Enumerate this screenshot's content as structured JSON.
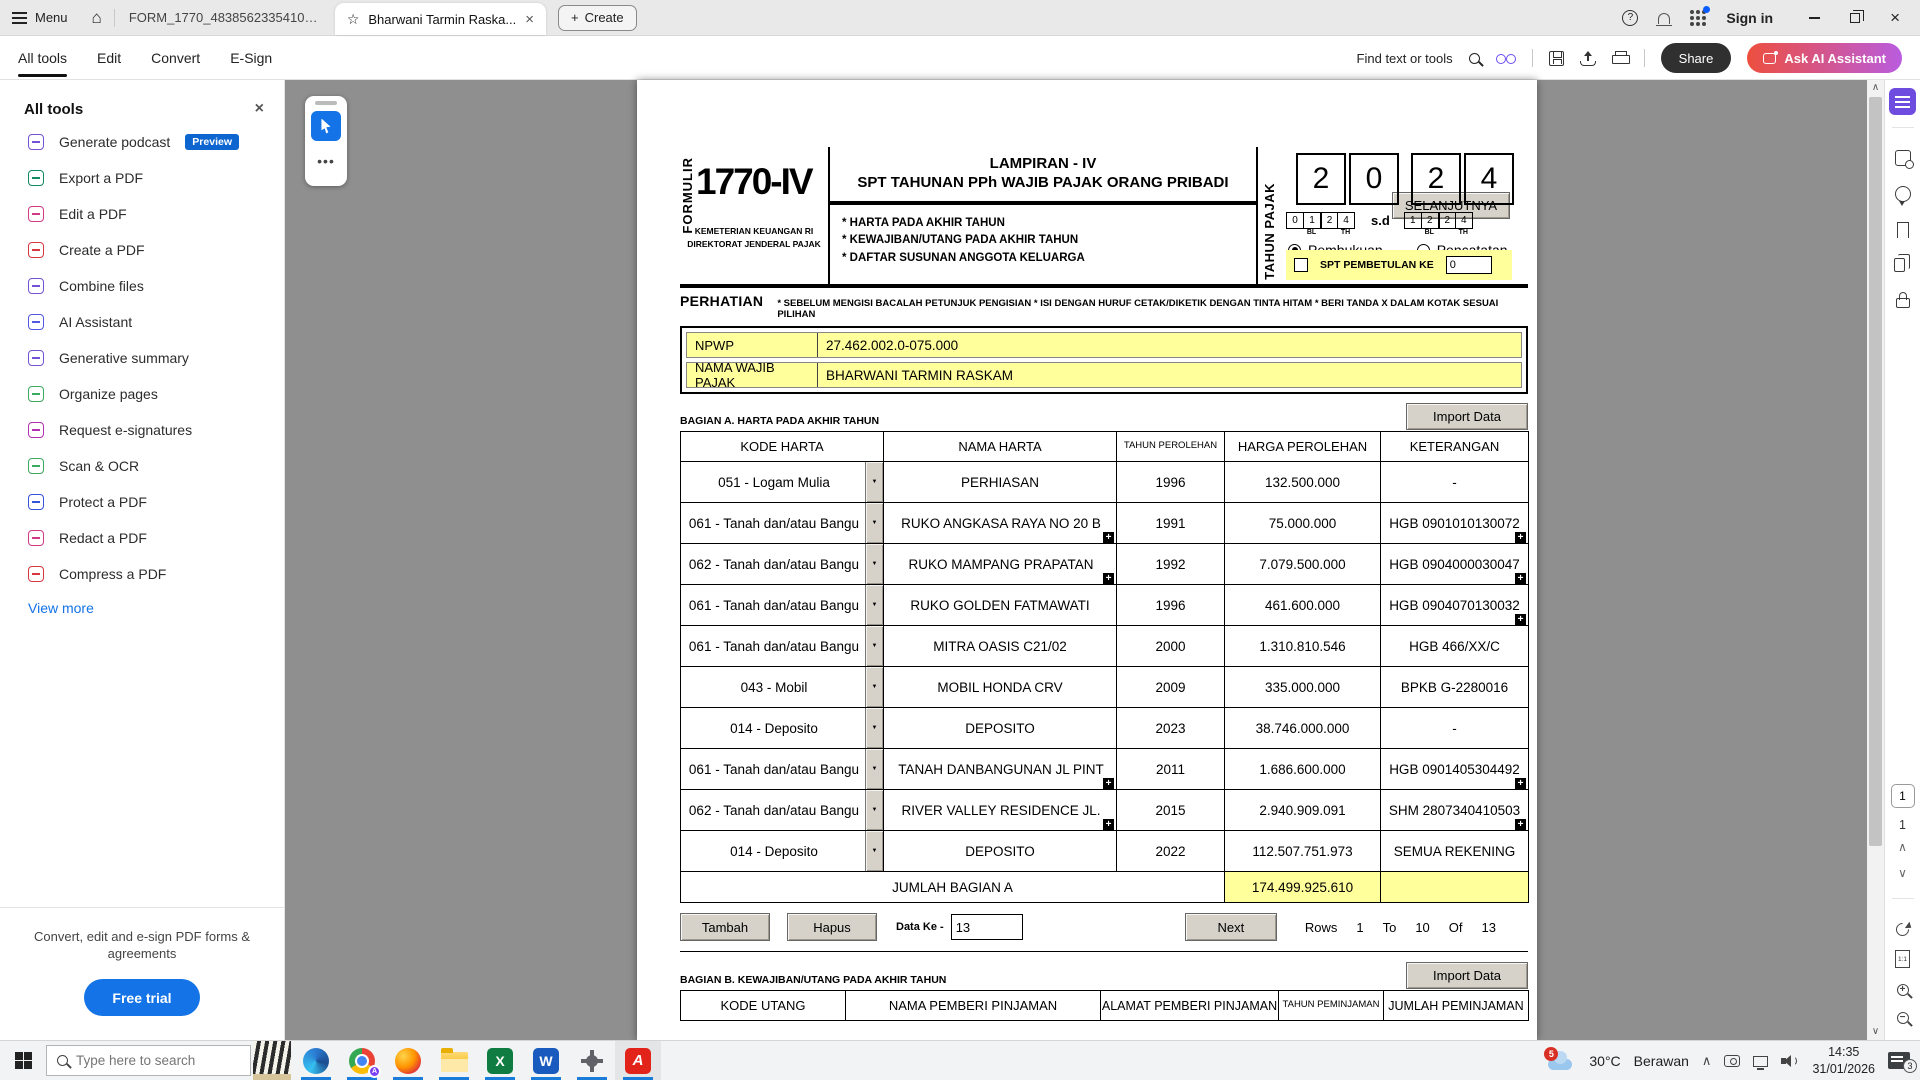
{
  "colors": {
    "accent_blue": "#1473e6",
    "highlight_yellow": "#ffff9c",
    "share_black": "#303030",
    "ai_gradient_start": "#ed4f3e",
    "ai_gradient_end": "#b95cdf",
    "canvas_gray": "#8f8f8f",
    "taskbar_underline": "#1a7bd9"
  },
  "titlebar": {
    "menu": "Menu",
    "tab_inactive": "FORM_1770_483856233541000...",
    "tab_active": "Bharwani Tarmin Raska...",
    "create": "Create",
    "sign_in": "Sign in"
  },
  "toolbar": {
    "nav": [
      "All tools",
      "Edit",
      "Convert",
      "E-Sign"
    ],
    "find": "Find text or tools",
    "share": "Share",
    "ask_ai": "Ask AI Assistant"
  },
  "sidebar": {
    "title": "All tools",
    "view_more": "View more",
    "promo": "Convert, edit and e-sign PDF forms & agreements",
    "free_trial": "Free trial",
    "items": [
      {
        "label": "Generate podcast",
        "badge": "Preview",
        "color": "#7352d6",
        "icon": "podcast-icon"
      },
      {
        "label": "Export a PDF",
        "color": "#108b62",
        "icon": "export-pdf-icon"
      },
      {
        "label": "Edit a PDF",
        "color": "#d13a84",
        "icon": "edit-pdf-icon"
      },
      {
        "label": "Create a PDF",
        "color": "#d7373f",
        "icon": "create-pdf-icon"
      },
      {
        "label": "Combine files",
        "color": "#7352d6",
        "icon": "combine-files-icon"
      },
      {
        "label": "AI Assistant",
        "color": "#5258e4",
        "icon": "ai-assistant-icon"
      },
      {
        "label": "Generative summary",
        "color": "#7352d6",
        "icon": "generative-summary-icon"
      },
      {
        "label": "Organize pages",
        "color": "#3da860",
        "icon": "organize-pages-icon"
      },
      {
        "label": "Request e-signatures",
        "color": "#b231b2",
        "icon": "e-signature-icon"
      },
      {
        "label": "Scan & OCR",
        "color": "#3da860",
        "icon": "scan-ocr-icon"
      },
      {
        "label": "Protect a PDF",
        "color": "#3455db",
        "icon": "protect-pdf-icon"
      },
      {
        "label": "Redact a PDF",
        "color": "#d13a84",
        "icon": "redact-pdf-icon"
      },
      {
        "label": "Compress a PDF",
        "color": "#d7373f",
        "icon": "compress-pdf-icon"
      }
    ]
  },
  "form": {
    "selanjutnya": "SELANJUTNYA",
    "formulir": "FORMULIR",
    "number": "1770-IV",
    "kementerian": "KEMETERIAN KEUANGAN RI",
    "direktorat": "DIREKTORAT JENDERAL PAJAK",
    "lampiran": "LAMPIRAN - IV",
    "subtitle": "SPT TAHUNAN PPh  WAJIB PAJAK ORANG PRIBADI",
    "bullets": [
      "* HARTA PADA AKHIR TAHUN",
      "* KEWAJIBAN/UTANG PADA AKHIR TAHUN",
      "* DAFTAR SUSUNAN ANGGOTA KELUARGA"
    ],
    "tahun_pajak": "TAHUN PAJAK",
    "year_digits": [
      "2",
      "0",
      "2",
      "4"
    ],
    "period_start": [
      "0",
      "1",
      "2",
      "4"
    ],
    "period_end": [
      "1",
      "2",
      "2",
      "4"
    ],
    "sd": "s.d",
    "bl": "BL",
    "th": "TH",
    "pembukuan": "Pembukuan",
    "pencatatan": "Pencatatan",
    "pembetulan_label": "SPT PEMBETULAN KE",
    "pembetulan_value": "0",
    "perhatian": "PERHATIAN",
    "perhatian_note": "* SEBELUM MENGISI BACALAH  PETUNJUK PENGISIAN  * ISI DENGAN HURUF CETAK/DIKETIK DENGAN TINTA HITAM   * BERI TANDA X DALAM KOTAK SESUAI PILIHAN",
    "npwp_label": "NPWP",
    "npwp_value": "27.462.002.0-075.000",
    "nama_label": "NAMA WAJIB PAJAK",
    "nama_value": "BHARWANI TARMIN RASKAM",
    "section_a": {
      "title": "BAGIAN A. HARTA PADA AKHIR TAHUN",
      "import_btn": "Import Data",
      "columns": [
        "KODE HARTA",
        "NAMA HARTA",
        "TAHUN PEROLEHAN",
        "HARGA PEROLEHAN",
        "KETERANGAN"
      ],
      "rows": [
        {
          "kode": "051 - Logam Mulia",
          "nama": "PERHIASAN",
          "tahun": "1996",
          "harga": "132.500.000",
          "ket": "-",
          "nama_more": false,
          "ket_more": false
        },
        {
          "kode": "061 - Tanah dan/atau Bangu",
          "nama": "RUKO ANGKASA RAYA NO 20 B",
          "tahun": "1991",
          "harga": "75.000.000",
          "ket": "HGB 0901010130072",
          "nama_more": true,
          "ket_more": true
        },
        {
          "kode": "062 - Tanah dan/atau Bangu",
          "nama": "RUKO MAMPANG PRAPATAN",
          "tahun": "1992",
          "harga": "7.079.500.000",
          "ket": "HGB 0904000030047",
          "nama_more": true,
          "ket_more": true
        },
        {
          "kode": "061 - Tanah dan/atau Bangu",
          "nama": "RUKO GOLDEN FATMAWATI",
          "tahun": "1996",
          "harga": "461.600.000",
          "ket": "HGB 0904070130032",
          "nama_more": false,
          "ket_more": true
        },
        {
          "kode": "061 - Tanah dan/atau Bangu",
          "nama": "MITRA OASIS C21/02",
          "tahun": "2000",
          "harga": "1.310.810.546",
          "ket": "HGB 466/XX/C",
          "nama_more": false,
          "ket_more": false
        },
        {
          "kode": "043 - Mobil",
          "nama": "MOBIL HONDA CRV",
          "tahun": "2009",
          "harga": "335.000.000",
          "ket": "BPKB G-2280016",
          "nama_more": false,
          "ket_more": false
        },
        {
          "kode": "014 - Deposito",
          "nama": "DEPOSITO",
          "tahun": "2023",
          "harga": "38.746.000.000",
          "ket": "-",
          "nama_more": false,
          "ket_more": false
        },
        {
          "kode": "061 - Tanah dan/atau Bangu",
          "nama": "TANAH DANBANGUNAN JL PINT",
          "tahun": "2011",
          "harga": "1.686.600.000",
          "ket": "HGB 0901405304492",
          "nama_more": true,
          "ket_more": true
        },
        {
          "kode": "062 - Tanah dan/atau Bangu",
          "nama": "RIVER VALLEY RESIDENCE JL.",
          "tahun": "2015",
          "harga": "2.940.909.091",
          "ket": "SHM 2807340410503",
          "nama_more": true,
          "ket_more": true
        },
        {
          "kode": "014 - Deposito",
          "nama": "DEPOSITO",
          "tahun": "2022",
          "harga": "112.507.751.973",
          "ket": "SEMUA REKENING",
          "nama_more": false,
          "ket_more": false
        }
      ],
      "jumlah_label": "JUMLAH BAGIAN A",
      "jumlah_value": "174.499.925.610",
      "tambah": "Tambah",
      "hapus": "Hapus",
      "data_ke_label": "Data Ke -",
      "data_ke_value": "13",
      "next": "Next",
      "pager": {
        "rows": "Rows",
        "start": "1",
        "to": "To",
        "end": "10",
        "of": "Of",
        "total": "13"
      }
    },
    "section_b": {
      "title": "BAGIAN B. KEWAJIBAN/UTANG PADA AKHIR TAHUN",
      "import_btn": "Import Data",
      "columns": [
        "KODE UTANG",
        "NAMA PEMBERI PINJAMAN",
        "ALAMAT PEMBERI PINJAMAN",
        "TAHUN PEMINJAMAN",
        "JUMLAH PEMINJAMAN"
      ]
    }
  },
  "rightbar": {
    "page_current": "1",
    "page_total": "1",
    "fit_label": "1:1"
  },
  "taskbar": {
    "search": "Type here to search",
    "weather_temp": "30°C",
    "weather_text": "Berawan",
    "time": "14:35",
    "date": "31/01/2026",
    "notif": "3",
    "cloud_badge": "5"
  }
}
